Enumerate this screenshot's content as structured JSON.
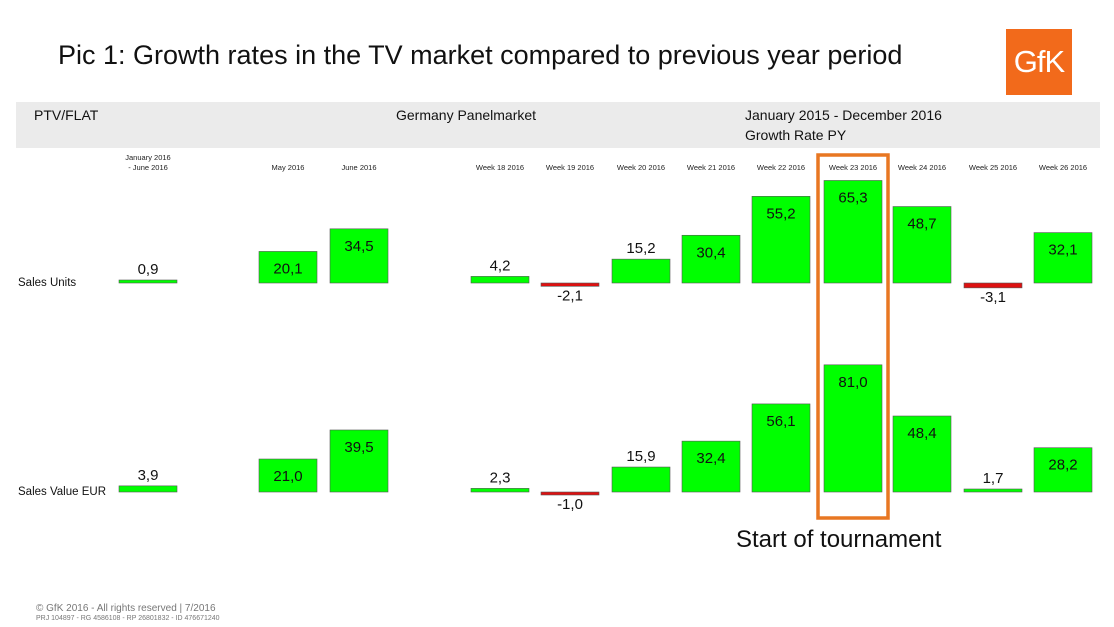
{
  "header": {
    "title": "Pic 1: Growth rates in the TV market compared to previous year period",
    "logo_text": "GfK",
    "logo_color": "#f26a1b"
  },
  "info_band": {
    "segment": "PTV/FLAT",
    "market": "Germany Panelmarket",
    "period": "January 2015 - December 2016",
    "measure": "Growth Rate PY"
  },
  "chart_data": {
    "type": "bar",
    "categories": [
      [
        "January 2016",
        "- June 2016"
      ],
      [
        "May 2016"
      ],
      [
        "June 2016"
      ],
      [
        "Week 18 2016"
      ],
      [
        "Week 19 2016"
      ],
      [
        "Week 20 2016"
      ],
      [
        "Week 21 2016"
      ],
      [
        "Week 22 2016"
      ],
      [
        "Week 23 2016"
      ],
      [
        "Week 24 2016"
      ],
      [
        "Week 25 2016"
      ],
      [
        "Week 26 2016"
      ]
    ],
    "series": [
      {
        "name": "Sales Units",
        "values": [
          0.9,
          20.1,
          34.5,
          4.2,
          -2.1,
          15.2,
          30.4,
          55.2,
          65.3,
          48.7,
          -3.1,
          32.1
        ],
        "labels": [
          "0,9",
          "20,1",
          "34,5",
          "4,2",
          "-2,1",
          "15,2",
          "30,4",
          "55,2",
          "65,3",
          "48,7",
          "-3,1",
          "32,1"
        ]
      },
      {
        "name": "Sales Value EUR",
        "values": [
          3.9,
          21.0,
          39.5,
          2.3,
          -1.0,
          15.9,
          32.4,
          56.1,
          81.0,
          48.4,
          1.7,
          28.2
        ],
        "labels": [
          "3,9",
          "21,0",
          "39,5",
          "2,3",
          "-1,0",
          "15,9",
          "32,4",
          "56,1",
          "81,0",
          "48,4",
          "1,7",
          "28,2"
        ]
      }
    ],
    "colors": {
      "positive": "#00ff00",
      "negative": "#dd1111",
      "highlight": "#e87722"
    },
    "highlight_category": "Week 23 2016",
    "annotation": "Start of tournament"
  },
  "footer": {
    "copyright": "© GfK 2016 - All rights reserved | 7/2016",
    "ids": "PRJ 104897 - RG 4586108 - RP 26801832 - ID 476671240"
  }
}
